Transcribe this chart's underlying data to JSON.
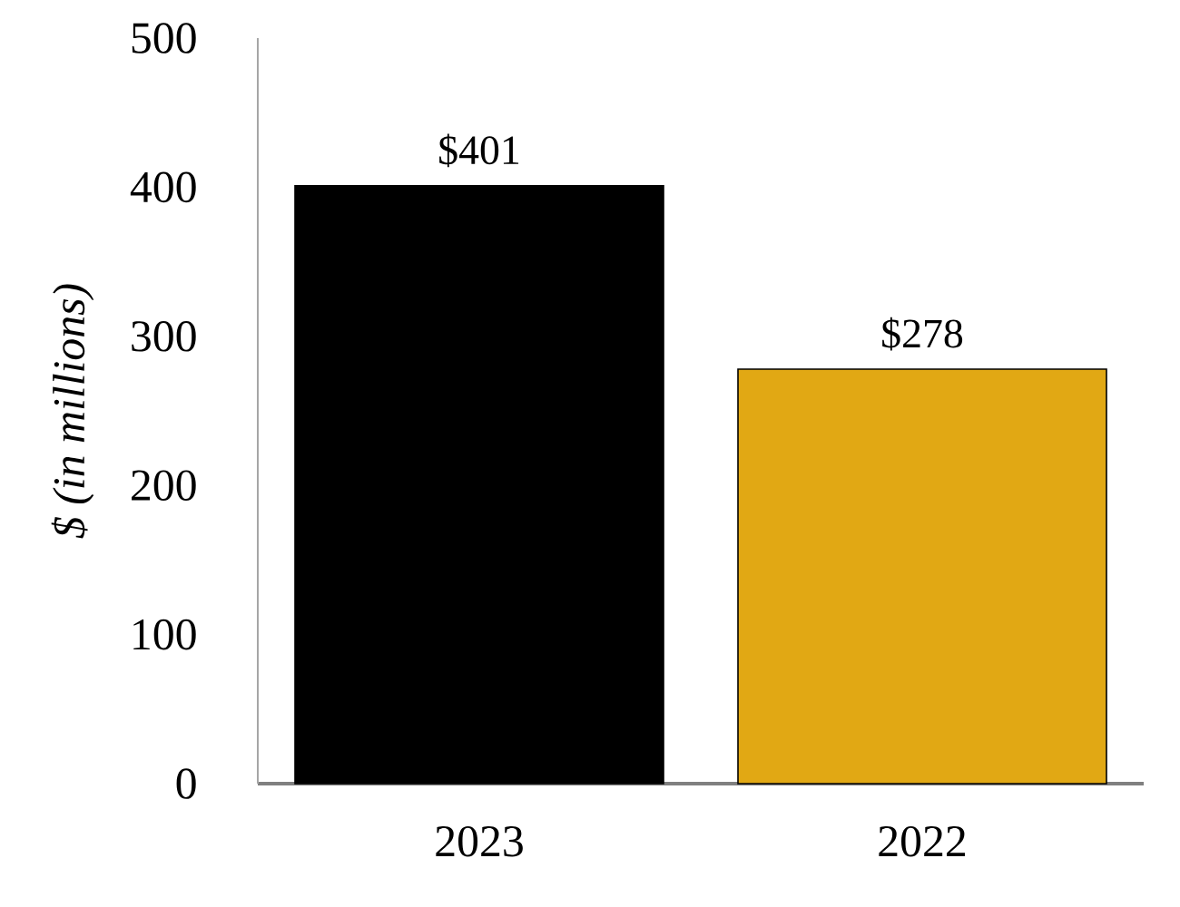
{
  "chart_data": {
    "type": "bar",
    "ylabel": "$ (in millions)",
    "categories": [
      "2023",
      "2022"
    ],
    "values": [
      401,
      278
    ],
    "colors": [
      "#000000",
      "#e1a814"
    ],
    "value_labels": [
      "$401",
      "$278"
    ],
    "ylim": [
      0,
      500
    ],
    "yticks": [
      0,
      100,
      200,
      300,
      400,
      500
    ]
  }
}
